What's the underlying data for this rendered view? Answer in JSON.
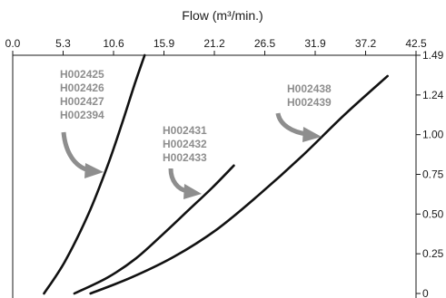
{
  "chart_data": {
    "type": "line",
    "title": "",
    "xlabel": "Flow (m³/min.)",
    "ylabel": "",
    "x_ticks": [
      "0.0",
      "5.3",
      "10.6",
      "15.9",
      "21.2",
      "26.5",
      "31.9",
      "37.2",
      "42.5"
    ],
    "y_ticks": [
      "1.49",
      "1.24",
      "1.00",
      "0.75",
      "0.50",
      "0.25",
      "0"
    ],
    "xlim": [
      0,
      42.5
    ],
    "ylim": [
      0,
      1.49
    ],
    "grid": false,
    "series": [
      {
        "x": [
          3.3,
          5.5,
          8.0,
          10.0,
          11.5,
          12.8,
          13.9
        ],
        "y": [
          0.0,
          0.2,
          0.5,
          0.8,
          1.06,
          1.3,
          1.49
        ]
      },
      {
        "x": [
          6.5,
          10.0,
          13.0,
          16.0,
          18.5,
          21.0,
          23.3
        ],
        "y": [
          0.0,
          0.1,
          0.22,
          0.38,
          0.52,
          0.66,
          0.8
        ]
      },
      {
        "x": [
          8.2,
          12.5,
          17.0,
          21.5,
          26.0,
          30.5,
          35.0,
          39.5
        ],
        "y": [
          0.0,
          0.1,
          0.23,
          0.4,
          0.62,
          0.86,
          1.12,
          1.36
        ]
      }
    ],
    "annotations": [
      {
        "lines": [
          "H002425",
          "H002426",
          "H002427",
          "H002394"
        ]
      },
      {
        "lines": [
          "H002431",
          "H002432",
          "H002433"
        ]
      },
      {
        "lines": [
          "H002438",
          "H002439"
        ]
      }
    ],
    "colors": {
      "line": "#111111",
      "annotation": "#8e8e8e",
      "axis": "#1a1a1a"
    }
  }
}
